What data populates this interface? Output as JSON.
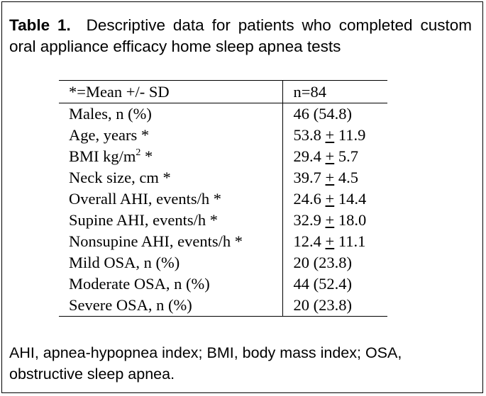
{
  "caption": {
    "label": "Table 1.",
    "text": "Descriptive data for patients who completed custom oral appliance efficacy home sleep apnea tests"
  },
  "table": {
    "header": [
      "*=Mean +/- SD",
      "n=84"
    ],
    "rows": [
      {
        "label": "Males, n (%)",
        "mean": "46 (54.8)"
      },
      {
        "label": "Age, years *",
        "mean": "53.8",
        "pm": "+",
        "sd": "11.9"
      },
      {
        "label_pre": "BMI kg/m",
        "label_sup": "2",
        "label_post": " *",
        "mean": "29.4",
        "pm": "+",
        "sd": "5.7"
      },
      {
        "label": "Neck size, cm *",
        "mean": "39.7",
        "pm": "+",
        "sd": "4.5"
      },
      {
        "label": "Overall AHI, events/h *",
        "mean": "24.6",
        "pm": "+",
        "sd": "14.4"
      },
      {
        "label": "Supine AHI, events/h *",
        "mean": "32.9",
        "pm": "+",
        "sd": "18.0"
      },
      {
        "label": "Nonsupine AHI, events/h *",
        "mean": "12.4",
        "pm": "+",
        "sd": "11.1"
      },
      {
        "label": "Mild OSA, n (%)",
        "mean": "20 (23.8)"
      },
      {
        "label": "Moderate OSA, n (%)",
        "mean": "44 (52.4)"
      },
      {
        "label": "Severe OSA, n (%)",
        "mean": "20 (23.8)"
      }
    ]
  },
  "footnote": "AHI, apnea-hypopnea index; BMI, body mass index; OSA, obstructive sleep apnea."
}
